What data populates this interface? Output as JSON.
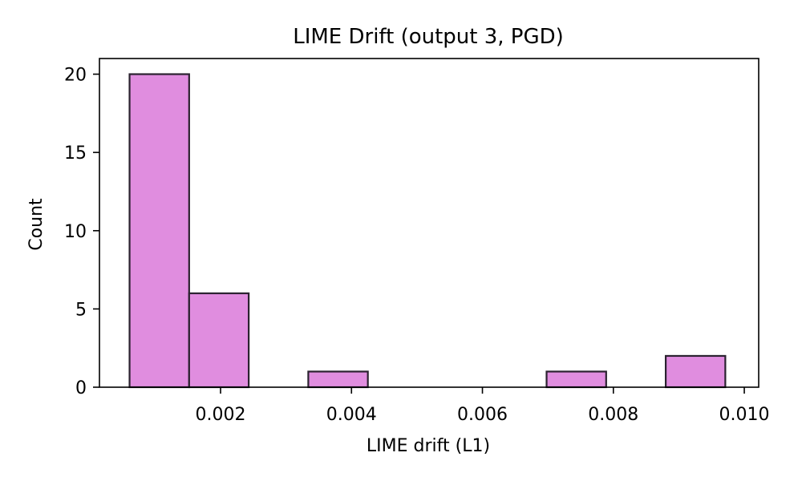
{
  "chart_data": {
    "type": "bar",
    "title": "LIME Drift (output 3, PGD)",
    "xlabel": "LIME drift (L1)",
    "ylabel": "Count",
    "xlim": [
      0.00015,
      0.01022
    ],
    "ylim": [
      0,
      21
    ],
    "xticks": [
      {
        "value": 0.002,
        "label": "0.002"
      },
      {
        "value": 0.004,
        "label": "0.004"
      },
      {
        "value": 0.006,
        "label": "0.006"
      },
      {
        "value": 0.008,
        "label": "0.008"
      },
      {
        "value": 0.01,
        "label": "0.010"
      }
    ],
    "yticks": [
      {
        "value": 0,
        "label": "0"
      },
      {
        "value": 5,
        "label": "5"
      },
      {
        "value": 10,
        "label": "10"
      },
      {
        "value": 15,
        "label": "15"
      },
      {
        "value": 20,
        "label": "20"
      }
    ],
    "bins": [
      {
        "start": 0.00061,
        "end": 0.00152,
        "count": 20
      },
      {
        "start": 0.00152,
        "end": 0.00243,
        "count": 6
      },
      {
        "start": 0.00243,
        "end": 0.00334,
        "count": 0
      },
      {
        "start": 0.00334,
        "end": 0.00425,
        "count": 1
      },
      {
        "start": 0.00425,
        "end": 0.00516,
        "count": 0
      },
      {
        "start": 0.00516,
        "end": 0.00607,
        "count": 0
      },
      {
        "start": 0.00607,
        "end": 0.00698,
        "count": 0
      },
      {
        "start": 0.00698,
        "end": 0.00789,
        "count": 1
      },
      {
        "start": 0.00789,
        "end": 0.0088,
        "count": 0
      },
      {
        "start": 0.0088,
        "end": 0.00971,
        "count": 2
      }
    ],
    "bar_color": "#e08ddf",
    "edge_color": "#2b2230",
    "grid": false,
    "legend": "none"
  }
}
